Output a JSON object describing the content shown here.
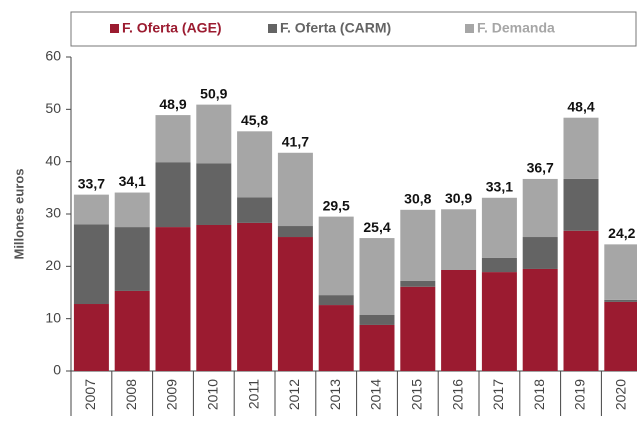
{
  "chart_data": {
    "type": "stacked_bar",
    "categories": [
      "2007",
      "2008",
      "2009",
      "2010",
      "2011",
      "2012",
      "2013",
      "2014",
      "2015",
      "2016",
      "2017",
      "2018",
      "2019",
      "2020"
    ],
    "series": [
      {
        "name": "F. Oferta (AGE)",
        "color": "#9b1b30",
        "values": [
          12.8,
          15.3,
          27.5,
          27.9,
          28.3,
          25.6,
          12.6,
          8.8,
          16.1,
          19.3,
          18.9,
          19.5,
          26.8,
          13.2
        ]
      },
      {
        "name": "F. Oferta (CARM)",
        "color": "#646464",
        "values": [
          15.2,
          12.2,
          12.4,
          11.8,
          4.9,
          2.1,
          1.9,
          1.9,
          1.1,
          0,
          2.7,
          6.1,
          9.9,
          0.4
        ]
      },
      {
        "name": "F. Demanda",
        "color": "#a6a6a6",
        "values": [
          5.7,
          6.6,
          9.0,
          11.2,
          12.6,
          14.0,
          15.0,
          14.7,
          13.6,
          11.6,
          11.5,
          11.1,
          11.7,
          10.6
        ]
      }
    ],
    "totals": [
      33.7,
      34.1,
      48.9,
      50.9,
      45.8,
      41.7,
      29.5,
      25.4,
      30.8,
      30.9,
      33.1,
      36.7,
      48.4,
      24.2
    ],
    "total_labels": [
      "33,7",
      "34,1",
      "48,9",
      "50,9",
      "45,8",
      "41,7",
      "29,5",
      "25,4",
      "30,8",
      "30,9",
      "33,1",
      "36,7",
      "48,4",
      "24,2"
    ],
    "ylabel": "Millones euros",
    "ylim": [
      0,
      60
    ],
    "yticks": [
      0,
      10,
      20,
      30,
      40,
      50,
      60
    ],
    "grid": false
  }
}
